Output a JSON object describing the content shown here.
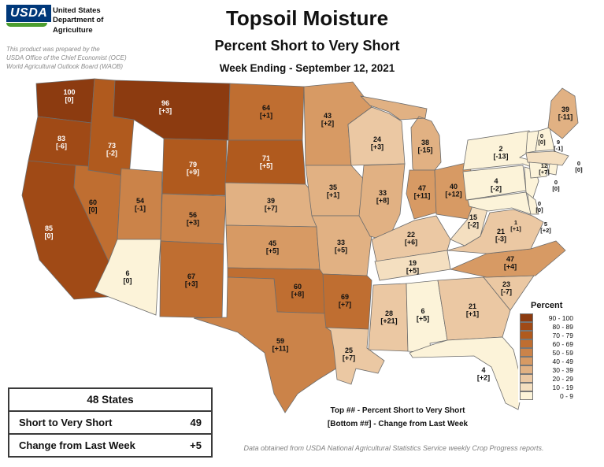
{
  "header": {
    "logo_text": "USDA",
    "agency_lines": [
      "United States",
      "Department of",
      "Agriculture"
    ],
    "prepared_lines": [
      "This product was prepared by the",
      "USDA Office of the Chief Economist (OCE)",
      "World Agricultural Outlook Board (WAOB)"
    ],
    "title": "Topsoil Moisture",
    "subtitle": "Percent Short to Very Short",
    "week_ending": "Week Ending - September 12, 2021"
  },
  "chart_data": {
    "type": "choropleth-map",
    "title": "Topsoil Moisture Percent Short to Very Short",
    "week_ending": "September 12, 2021",
    "unit": "percent short to very short (top number), change from last week (bottom bracketed number)",
    "states_count": 48,
    "national_percent": 49,
    "national_change": "+5",
    "states": [
      {
        "state": "WA",
        "value": 100,
        "change": "0"
      },
      {
        "state": "OR",
        "value": 83,
        "change": "-6"
      },
      {
        "state": "CA",
        "value": 85,
        "change": "0"
      },
      {
        "state": "NV",
        "value": 60,
        "change": "0"
      },
      {
        "state": "ID",
        "value": 73,
        "change": "-2"
      },
      {
        "state": "MT",
        "value": 96,
        "change": "+3"
      },
      {
        "state": "WY",
        "value": 79,
        "change": "+9"
      },
      {
        "state": "UT",
        "value": 54,
        "change": "-1"
      },
      {
        "state": "CO",
        "value": 56,
        "change": "+3"
      },
      {
        "state": "AZ",
        "value": 6,
        "change": "0"
      },
      {
        "state": "NM",
        "value": 67,
        "change": "+3"
      },
      {
        "state": "ND",
        "value": 64,
        "change": "+1"
      },
      {
        "state": "SD",
        "value": 71,
        "change": "+5"
      },
      {
        "state": "NE",
        "value": 39,
        "change": "+7"
      },
      {
        "state": "KS",
        "value": 45,
        "change": "+5"
      },
      {
        "state": "OK",
        "value": 60,
        "change": "+8"
      },
      {
        "state": "TX",
        "value": 59,
        "change": "+11"
      },
      {
        "state": "MN",
        "value": 43,
        "change": "+2"
      },
      {
        "state": "IA",
        "value": 35,
        "change": "+1"
      },
      {
        "state": "MO",
        "value": 33,
        "change": "+5"
      },
      {
        "state": "AR",
        "value": 69,
        "change": "+7"
      },
      {
        "state": "LA",
        "value": 25,
        "change": "+7"
      },
      {
        "state": "WI",
        "value": 24,
        "change": "+3"
      },
      {
        "state": "IL",
        "value": 33,
        "change": "+8"
      },
      {
        "state": "MI",
        "value": 38,
        "change": "-15"
      },
      {
        "state": "IN",
        "value": 47,
        "change": "+11"
      },
      {
        "state": "OH",
        "value": 40,
        "change": "+12"
      },
      {
        "state": "KY",
        "value": 22,
        "change": "+6"
      },
      {
        "state": "TN",
        "value": 19,
        "change": "+5"
      },
      {
        "state": "MS",
        "value": 28,
        "change": "+21"
      },
      {
        "state": "AL",
        "value": 6,
        "change": "+5"
      },
      {
        "state": "GA",
        "value": 21,
        "change": "+1"
      },
      {
        "state": "FL",
        "value": 4,
        "change": "+2"
      },
      {
        "state": "SC",
        "value": 23,
        "change": "-7"
      },
      {
        "state": "NC",
        "value": 47,
        "change": "+4"
      },
      {
        "state": "VA",
        "value": 21,
        "change": "-3"
      },
      {
        "state": "WV",
        "value": 15,
        "change": "-2"
      },
      {
        "state": "PA",
        "value": 4,
        "change": "-2"
      },
      {
        "state": "NY",
        "value": 2,
        "change": "-13"
      },
      {
        "state": "NJ",
        "value": 0,
        "change": "0"
      },
      {
        "state": "DE",
        "value": 5,
        "change": "+2"
      },
      {
        "state": "MD",
        "value": 1,
        "change": "+1"
      },
      {
        "state": "VT",
        "value": 0,
        "change": "0"
      },
      {
        "state": "NH",
        "value": 9,
        "change": "-1"
      },
      {
        "state": "MA",
        "value": 12,
        "change": "+7"
      },
      {
        "state": "CT",
        "value": 0,
        "change": "0"
      },
      {
        "state": "RI",
        "value": 0,
        "change": "0"
      },
      {
        "state": "ME",
        "value": 39,
        "change": "-11"
      }
    ],
    "legend": {
      "title": "Percent",
      "position": "right",
      "bins": [
        {
          "label": "90 - 100",
          "min": 90,
          "color": "#8c3b10"
        },
        {
          "label": "80 - 89",
          "min": 80,
          "color": "#a04a16"
        },
        {
          "label": "70 - 79",
          "min": 70,
          "color": "#b05a1e"
        },
        {
          "label": "60 - 69",
          "min": 60,
          "color": "#bf6e31"
        },
        {
          "label": "50 - 59",
          "min": 50,
          "color": "#cb8349"
        },
        {
          "label": "40 - 49",
          "min": 40,
          "color": "#d79a64"
        },
        {
          "label": "30 - 39",
          "min": 30,
          "color": "#e1b183"
        },
        {
          "label": "20 - 29",
          "min": 20,
          "color": "#ebc8a3"
        },
        {
          "label": "10 - 19",
          "min": 10,
          "color": "#f4dfc0"
        },
        {
          "label": "0 - 9",
          "min": 0,
          "color": "#fcf3d9"
        }
      ]
    }
  },
  "summary_box": {
    "title": "48 States",
    "row1_label": "Short to Very Short",
    "row1_value": "49",
    "row2_label": "Change from Last Week",
    "row2_value": "+5"
  },
  "map_notes": {
    "top_note": "Top ## - Percent Short to Very Short",
    "bottom_note": "[Bottom ##] - Change from Last Week"
  },
  "footer": "Data obtained from USDA National Agricultural Statistics Service weekly Crop Progress reports."
}
